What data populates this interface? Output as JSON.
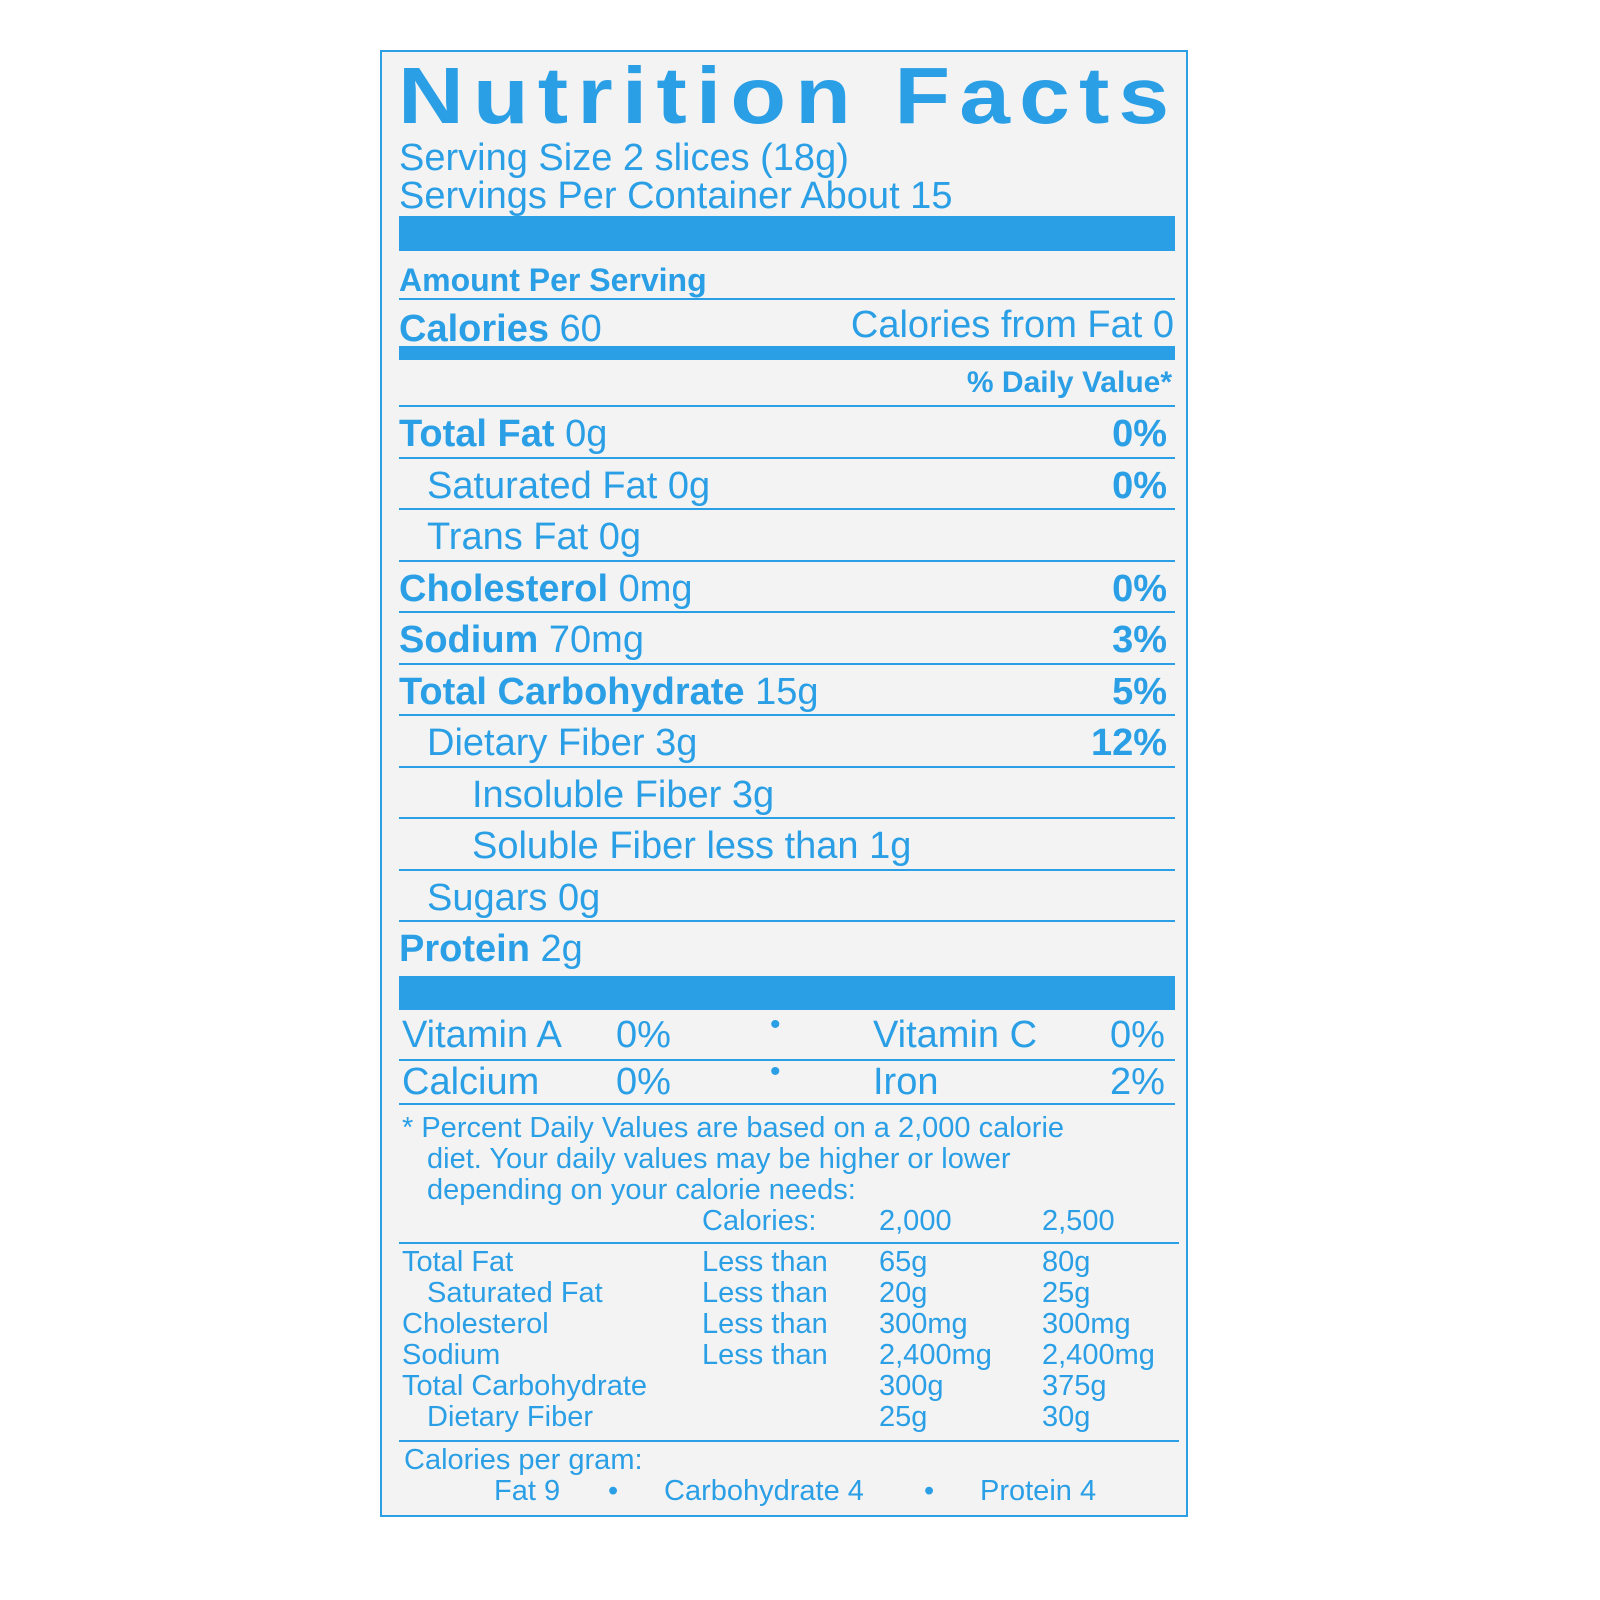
{
  "accent_color": "#2a9fe6",
  "title": "Nutrition Facts",
  "serving_size": "Serving Size 2 slices (18g)",
  "servings_per_container": "Servings Per Container About 15",
  "amount_per_serving": "Amount Per Serving",
  "calories_label": "Calories",
  "calories_value": "60",
  "calories_from_fat": "Calories from Fat 0",
  "daily_value_header": "% Daily Value*",
  "nutrients": [
    {
      "name": "Total Fat",
      "amount": "0g",
      "dv": "0%",
      "bold": true,
      "indent": 0
    },
    {
      "name": "Saturated Fat",
      "amount": "0g",
      "dv": "0%",
      "bold": false,
      "indent": 1
    },
    {
      "name": "Trans Fat",
      "amount": "0g",
      "dv": "",
      "bold": false,
      "indent": 1
    },
    {
      "name": "Cholesterol",
      "amount": "0mg",
      "dv": "0%",
      "bold": true,
      "indent": 0
    },
    {
      "name": "Sodium",
      "amount": "70mg",
      "dv": "3%",
      "bold": true,
      "indent": 0
    },
    {
      "name": "Total Carbohydrate",
      "amount": "15g",
      "dv": "5%",
      "bold": true,
      "indent": 0
    },
    {
      "name": "Dietary Fiber",
      "amount": "3g",
      "dv": "12%",
      "bold": false,
      "indent": 1
    },
    {
      "name": "Insoluble Fiber",
      "amount": "3g",
      "dv": "",
      "bold": false,
      "indent": 2
    },
    {
      "name": "Soluble Fiber",
      "amount": "less than 1g",
      "dv": "",
      "bold": false,
      "indent": 2
    },
    {
      "name": "Sugars",
      "amount": "0g",
      "dv": "",
      "bold": false,
      "indent": 1
    },
    {
      "name": "Protein",
      "amount": "2g",
      "dv": "",
      "bold": true,
      "indent": 0
    }
  ],
  "vitamins": [
    [
      {
        "name": "Vitamin A",
        "dv": "0%"
      },
      {
        "name": "Vitamin C",
        "dv": "0%"
      }
    ],
    [
      {
        "name": "Calcium",
        "dv": "0%"
      },
      {
        "name": "Iron",
        "dv": "2%"
      }
    ]
  ],
  "bullet": "•",
  "footnote": [
    "* Percent Daily Values are based on a 2,000 calorie",
    "diet. Your daily values may be higher or lower",
    "depending on your calorie needs:"
  ],
  "reference_table": {
    "header": [
      "",
      "Calories:",
      "2,000",
      "2,500"
    ],
    "rows": [
      [
        "Total Fat",
        "Less than",
        "65g",
        "80g"
      ],
      [
        "Saturated Fat",
        "Less than",
        "20g",
        "25g"
      ],
      [
        "Cholesterol",
        "Less than",
        "300mg",
        "300mg"
      ],
      [
        "Sodium",
        "Less than",
        "2,400mg",
        "2,400mg"
      ],
      [
        "Total Carbohydrate",
        "",
        "300g",
        "375g"
      ],
      [
        "Dietary Fiber",
        "",
        "25g",
        "30g"
      ]
    ]
  },
  "calories_per_gram": {
    "label": "Calories per gram:",
    "items": [
      "Fat 9",
      "Carbohydrate 4",
      "Protein 4"
    ]
  }
}
